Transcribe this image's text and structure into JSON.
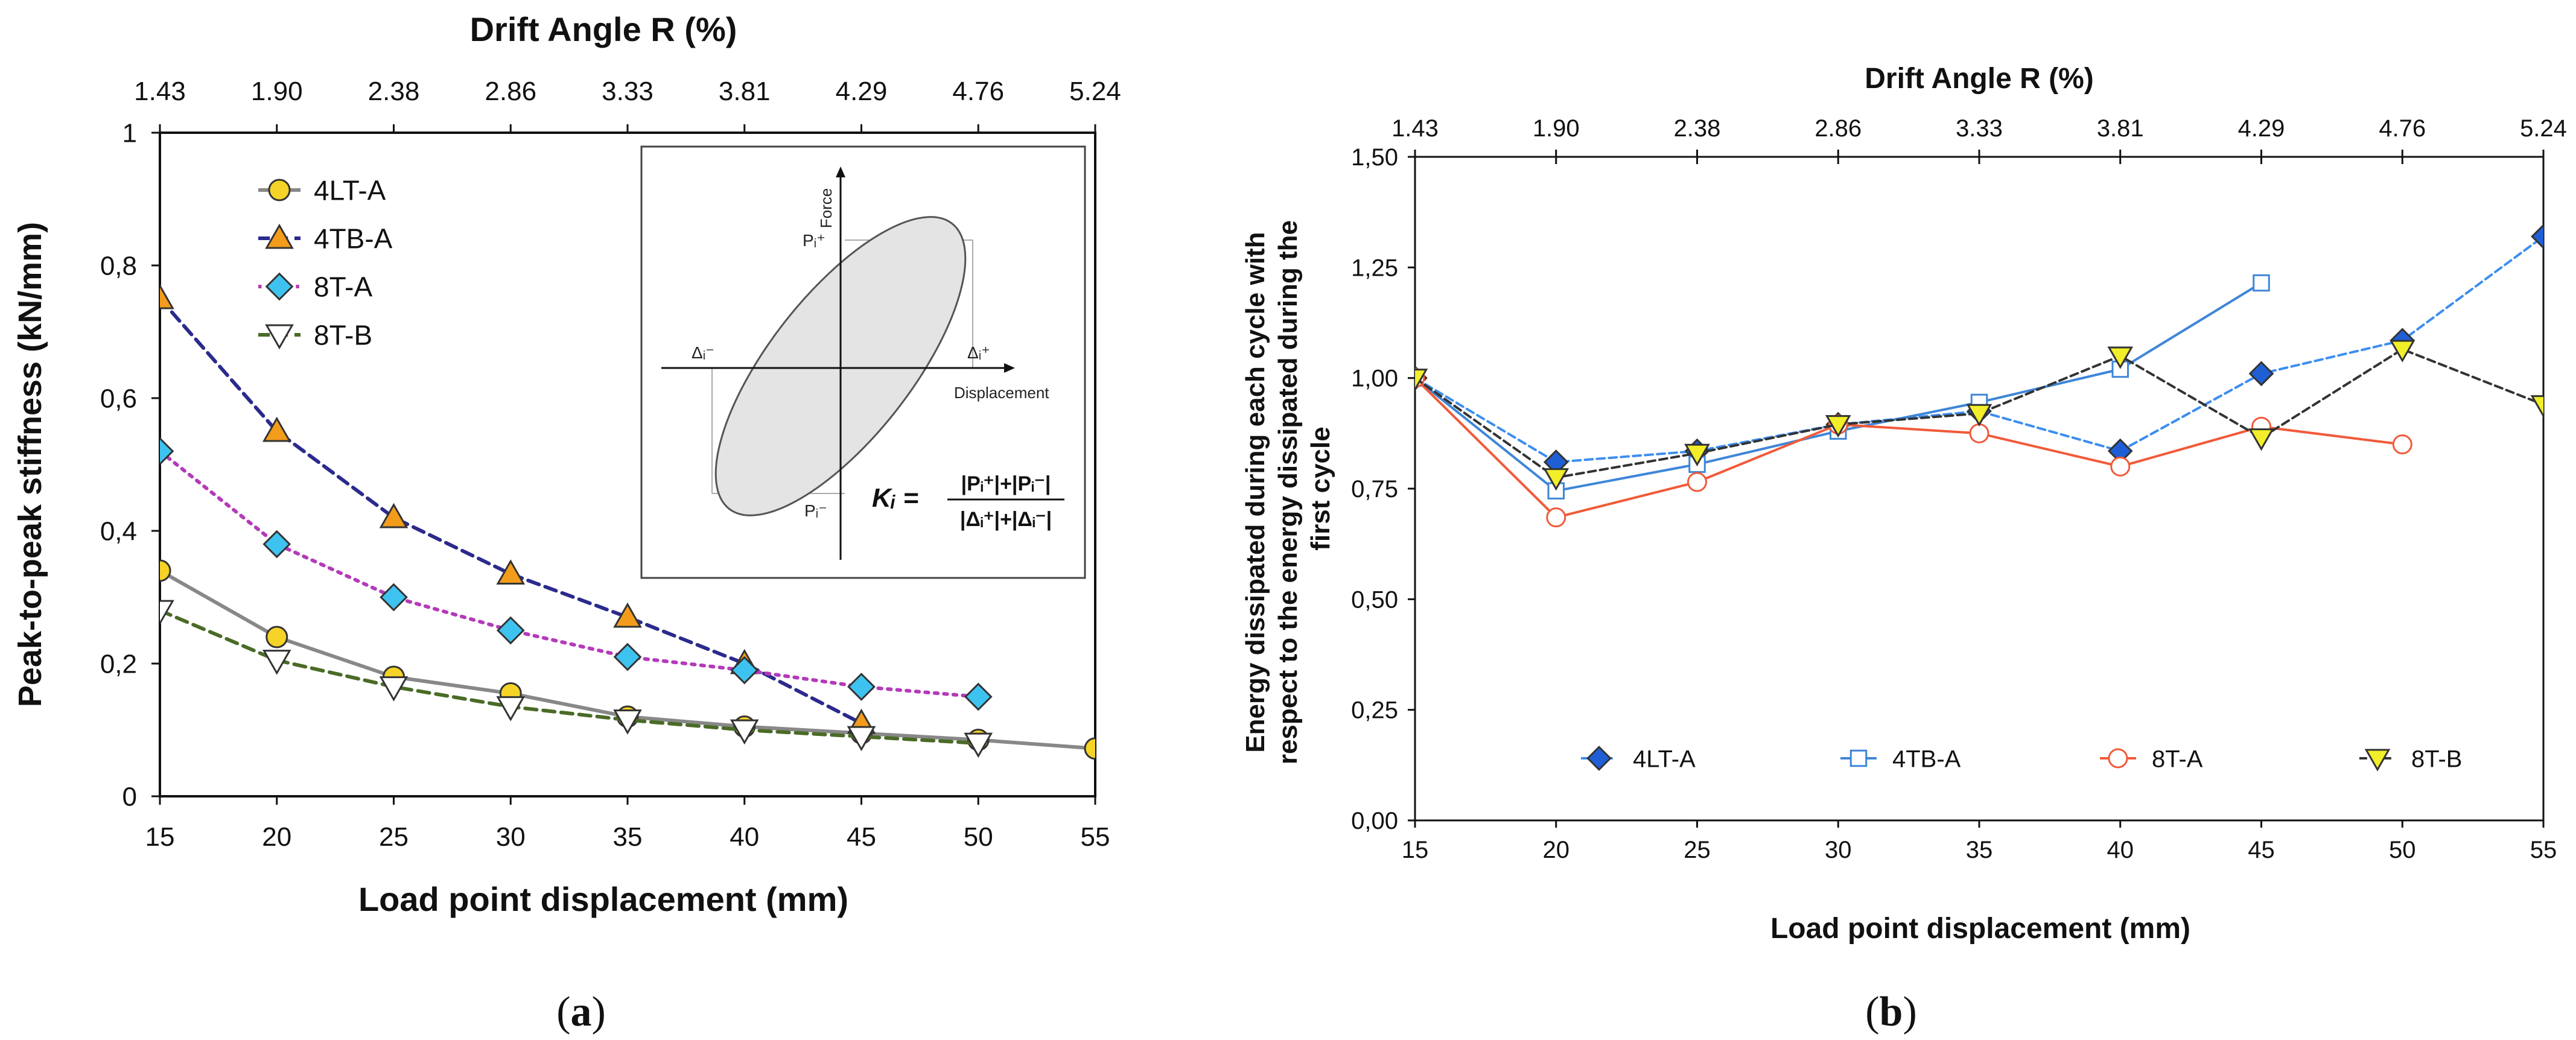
{
  "panels": [
    {
      "caption_open": "(",
      "caption_letter": "a",
      "caption_close": ")",
      "chart": {
        "type": "line",
        "xlabel": "Load point displacement (mm)",
        "ylabel": "Peak-to-peak stiffness (kN/mm)",
        "top_axis_label": "Drift Angle R (%)",
        "xlim": [
          15,
          55
        ],
        "ylim": [
          0,
          1
        ],
        "x_ticks": [
          "15",
          "20",
          "25",
          "30",
          "35",
          "40",
          "45",
          "50",
          "55"
        ],
        "y_ticks": [
          "0",
          "0,2",
          "0,4",
          "0,6",
          "0,8",
          "1"
        ],
        "top_ticks": [
          "1.43",
          "1.90",
          "2.38",
          "2.86",
          "3.33",
          "3.81",
          "4.29",
          "4.76",
          "5.24"
        ],
        "legend_position": "top-left",
        "series": [
          {
            "name": "4LT-A",
            "marker": "circle",
            "fill": "#f5d327",
            "line_color": "#888888",
            "dash": "solid",
            "x": [
              15,
              20,
              25,
              30,
              35,
              40,
              45,
              50,
              55
            ],
            "y": [
              0.34,
              0.24,
              0.18,
              0.155,
              0.12,
              0.105,
              0.095,
              0.085,
              0.072
            ]
          },
          {
            "name": "4TB-A",
            "marker": "triangle-up",
            "fill": "#f39c1c",
            "line_color": "#2b2a8c",
            "dash": "dashed",
            "x": [
              15,
              20,
              25,
              30,
              35,
              40,
              45
            ],
            "y": [
              0.75,
              0.55,
              0.42,
              0.335,
              0.27,
              0.2,
              0.11
            ]
          },
          {
            "name": "8T-A",
            "marker": "diamond",
            "fill": "#3ec3f0",
            "line_color": "#b43ab9",
            "dash": "dotted",
            "x": [
              15,
              20,
              25,
              30,
              35,
              40,
              45,
              50
            ],
            "y": [
              0.52,
              0.38,
              0.3,
              0.25,
              0.21,
              0.19,
              0.165,
              0.15
            ]
          },
          {
            "name": "8T-B",
            "marker": "triangle-down",
            "fill": "#ffffff",
            "line_color": "#4a6b26",
            "dash": "dashed",
            "x": [
              15,
              20,
              25,
              30,
              35,
              40,
              45,
              50
            ],
            "y": [
              0.28,
              0.205,
              0.165,
              0.135,
              0.115,
              0.1,
              0.09,
              0.08
            ]
          }
        ],
        "inset": {
          "force_label": "Force",
          "displacement_label": "Displacement",
          "p_plus": "Pᵢ⁺",
          "p_minus": "Pᵢ⁻",
          "d_plus": "Δᵢ⁺",
          "d_minus": "Δᵢ⁻",
          "formula_lhs": "Kᵢ =",
          "formula_num": "|Pᵢ⁺|+|Pᵢ⁻|",
          "formula_den": "|Δᵢ⁺|+|Δᵢ⁻|"
        }
      }
    },
    {
      "caption_open": "(",
      "caption_letter": "b",
      "caption_close": ")",
      "chart": {
        "type": "line",
        "xlabel": "Load point displacement (mm)",
        "ylabel_lines": [
          "Energy dissipated during each cycle with",
          "respect to the energy dissipated during the",
          "first cycle"
        ],
        "top_axis_label": "Drift Angle R (%)",
        "xlim": [
          15,
          55
        ],
        "ylim": [
          0,
          1.5
        ],
        "x_ticks": [
          "15",
          "20",
          "25",
          "30",
          "35",
          "40",
          "45",
          "50",
          "55"
        ],
        "y_ticks": [
          "0,00",
          "0,25",
          "0,50",
          "0,75",
          "1,00",
          "1,25",
          "1,50"
        ],
        "top_ticks": [
          "1.43",
          "1.90",
          "2.38",
          "2.86",
          "3.33",
          "3.81",
          "4.29",
          "4.76",
          "5.24"
        ],
        "legend_position": "bottom",
        "series": [
          {
            "name": "4LT-A",
            "marker": "diamond",
            "fill": "#1f5fd6",
            "line_color": "#3c8ef0",
            "dash": "dashed",
            "x": [
              15,
              20,
              25,
              30,
              35,
              40,
              45,
              50,
              55
            ],
            "y": [
              1.0,
              0.81,
              0.835,
              0.895,
              0.925,
              0.835,
              1.01,
              1.085,
              1.32
            ]
          },
          {
            "name": "4TB-A",
            "marker": "square-open",
            "fill": "#ffffff",
            "line_color": "#3e86d8",
            "dash": "solid",
            "x": [
              15,
              20,
              25,
              30,
              35,
              40,
              45
            ],
            "y": [
              1.0,
              0.745,
              0.805,
              0.88,
              0.945,
              1.02,
              1.215
            ]
          },
          {
            "name": "8T-A",
            "marker": "circle-open",
            "fill": "#ffffff",
            "line_color": "#f15a3a",
            "dash": "solid",
            "x": [
              15,
              20,
              25,
              30,
              35,
              40,
              45,
              50
            ],
            "y": [
              1.0,
              0.685,
              0.765,
              0.895,
              0.875,
              0.8,
              0.89,
              0.85
            ]
          },
          {
            "name": "8T-B",
            "marker": "triangle-down",
            "fill": "#f2ef2a",
            "line_color": "#333333",
            "dash": "dashed",
            "x": [
              15,
              20,
              25,
              30,
              35,
              40,
              45,
              50,
              55
            ],
            "y": [
              1.0,
              0.775,
              0.83,
              0.895,
              0.92,
              1.05,
              0.865,
              1.065,
              0.94
            ]
          }
        ]
      }
    }
  ]
}
